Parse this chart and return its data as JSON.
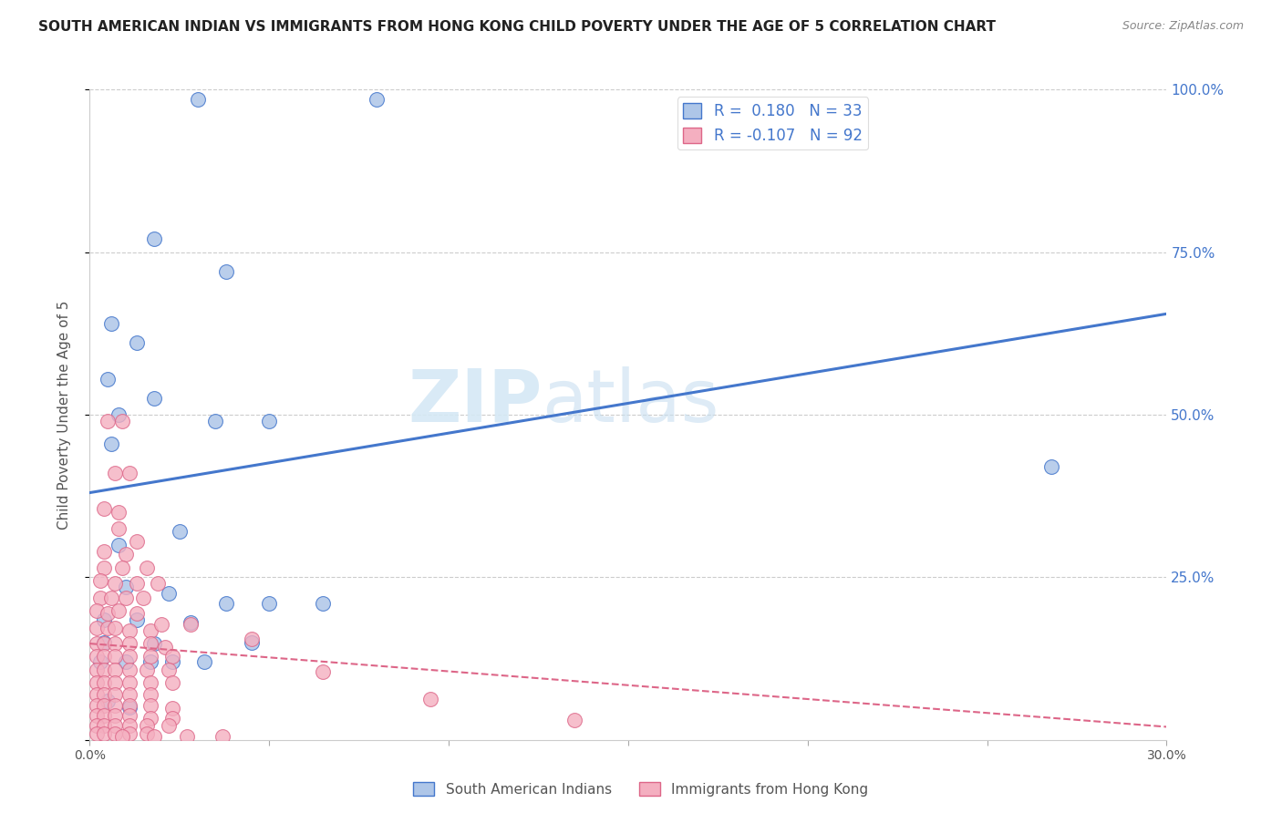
{
  "title": "SOUTH AMERICAN INDIAN VS IMMIGRANTS FROM HONG KONG CHILD POVERTY UNDER THE AGE OF 5 CORRELATION CHART",
  "source": "Source: ZipAtlas.com",
  "ylabel": "Child Poverty Under the Age of 5",
  "xmin": 0.0,
  "xmax": 0.3,
  "ymin": 0.0,
  "ymax": 1.0,
  "xtick_labels": [
    "0.0%",
    "",
    "",
    "",
    "",
    "",
    "30.0%"
  ],
  "xtick_vals": [
    0.0,
    0.05,
    0.1,
    0.15,
    0.2,
    0.25,
    0.3
  ],
  "ytick_right_labels": [
    "100.0%",
    "75.0%",
    "50.0%",
    "25.0%",
    ""
  ],
  "ytick_vals": [
    1.0,
    0.75,
    0.5,
    0.25,
    0.0
  ],
  "legend_line1": "R =  0.180   N = 33",
  "legend_line2": "R = -0.107   N = 92",
  "blue_color": "#aec6e8",
  "pink_color": "#f4afc0",
  "line_blue": "#4477cc",
  "line_pink": "#dd6688",
  "watermark_zip": "ZIP",
  "watermark_atlas": "atlas",
  "blue_dots": [
    [
      0.03,
      0.985
    ],
    [
      0.08,
      0.985
    ],
    [
      0.018,
      0.77
    ],
    [
      0.038,
      0.72
    ],
    [
      0.006,
      0.64
    ],
    [
      0.013,
      0.61
    ],
    [
      0.005,
      0.555
    ],
    [
      0.018,
      0.525
    ],
    [
      0.008,
      0.5
    ],
    [
      0.035,
      0.49
    ],
    [
      0.05,
      0.49
    ],
    [
      0.006,
      0.455
    ],
    [
      0.008,
      0.3
    ],
    [
      0.025,
      0.32
    ],
    [
      0.01,
      0.235
    ],
    [
      0.022,
      0.225
    ],
    [
      0.038,
      0.21
    ],
    [
      0.05,
      0.21
    ],
    [
      0.065,
      0.21
    ],
    [
      0.004,
      0.185
    ],
    [
      0.013,
      0.185
    ],
    [
      0.028,
      0.18
    ],
    [
      0.004,
      0.15
    ],
    [
      0.018,
      0.148
    ],
    [
      0.045,
      0.15
    ],
    [
      0.003,
      0.12
    ],
    [
      0.01,
      0.12
    ],
    [
      0.017,
      0.12
    ],
    [
      0.023,
      0.12
    ],
    [
      0.032,
      0.12
    ],
    [
      0.005,
      0.06
    ],
    [
      0.011,
      0.05
    ],
    [
      0.268,
      0.42
    ]
  ],
  "pink_dots": [
    [
      0.005,
      0.49
    ],
    [
      0.009,
      0.49
    ],
    [
      0.007,
      0.41
    ],
    [
      0.011,
      0.41
    ],
    [
      0.004,
      0.355
    ],
    [
      0.008,
      0.35
    ],
    [
      0.004,
      0.29
    ],
    [
      0.01,
      0.285
    ],
    [
      0.004,
      0.265
    ],
    [
      0.009,
      0.265
    ],
    [
      0.016,
      0.265
    ],
    [
      0.003,
      0.245
    ],
    [
      0.007,
      0.24
    ],
    [
      0.013,
      0.24
    ],
    [
      0.019,
      0.24
    ],
    [
      0.003,
      0.218
    ],
    [
      0.006,
      0.218
    ],
    [
      0.01,
      0.218
    ],
    [
      0.015,
      0.218
    ],
    [
      0.002,
      0.198
    ],
    [
      0.005,
      0.195
    ],
    [
      0.008,
      0.198
    ],
    [
      0.013,
      0.195
    ],
    [
      0.002,
      0.172
    ],
    [
      0.005,
      0.172
    ],
    [
      0.007,
      0.172
    ],
    [
      0.011,
      0.168
    ],
    [
      0.017,
      0.168
    ],
    [
      0.002,
      0.148
    ],
    [
      0.004,
      0.148
    ],
    [
      0.007,
      0.148
    ],
    [
      0.011,
      0.148
    ],
    [
      0.017,
      0.148
    ],
    [
      0.021,
      0.143
    ],
    [
      0.002,
      0.128
    ],
    [
      0.004,
      0.128
    ],
    [
      0.007,
      0.128
    ],
    [
      0.011,
      0.128
    ],
    [
      0.017,
      0.128
    ],
    [
      0.023,
      0.128
    ],
    [
      0.002,
      0.108
    ],
    [
      0.004,
      0.108
    ],
    [
      0.007,
      0.108
    ],
    [
      0.011,
      0.108
    ],
    [
      0.016,
      0.108
    ],
    [
      0.022,
      0.108
    ],
    [
      0.002,
      0.088
    ],
    [
      0.004,
      0.088
    ],
    [
      0.007,
      0.088
    ],
    [
      0.011,
      0.088
    ],
    [
      0.017,
      0.088
    ],
    [
      0.023,
      0.088
    ],
    [
      0.002,
      0.07
    ],
    [
      0.004,
      0.07
    ],
    [
      0.007,
      0.07
    ],
    [
      0.011,
      0.07
    ],
    [
      0.017,
      0.07
    ],
    [
      0.002,
      0.053
    ],
    [
      0.004,
      0.053
    ],
    [
      0.007,
      0.053
    ],
    [
      0.011,
      0.053
    ],
    [
      0.017,
      0.053
    ],
    [
      0.023,
      0.048
    ],
    [
      0.002,
      0.038
    ],
    [
      0.004,
      0.038
    ],
    [
      0.007,
      0.038
    ],
    [
      0.011,
      0.038
    ],
    [
      0.017,
      0.033
    ],
    [
      0.023,
      0.033
    ],
    [
      0.002,
      0.022
    ],
    [
      0.004,
      0.022
    ],
    [
      0.007,
      0.022
    ],
    [
      0.011,
      0.022
    ],
    [
      0.016,
      0.022
    ],
    [
      0.022,
      0.022
    ],
    [
      0.002,
      0.01
    ],
    [
      0.004,
      0.01
    ],
    [
      0.007,
      0.01
    ],
    [
      0.011,
      0.01
    ],
    [
      0.016,
      0.01
    ],
    [
      0.045,
      0.155
    ],
    [
      0.065,
      0.105
    ],
    [
      0.095,
      0.062
    ],
    [
      0.135,
      0.03
    ],
    [
      0.009,
      0.005
    ],
    [
      0.018,
      0.005
    ],
    [
      0.027,
      0.005
    ],
    [
      0.037,
      0.005
    ],
    [
      0.02,
      0.178
    ],
    [
      0.028,
      0.178
    ],
    [
      0.013,
      0.305
    ],
    [
      0.008,
      0.325
    ]
  ],
  "blue_line_x": [
    0.0,
    0.3
  ],
  "blue_line_y": [
    0.38,
    0.655
  ],
  "pink_line_x": [
    0.0,
    0.3
  ],
  "pink_line_y": [
    0.148,
    0.02
  ]
}
